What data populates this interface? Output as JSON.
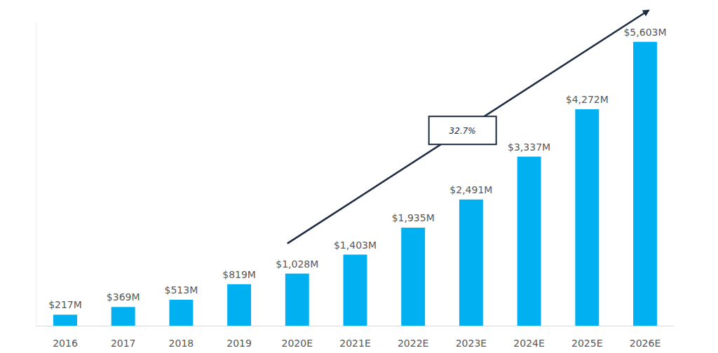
{
  "chart_data": {
    "type": "bar",
    "categories": [
      "2016",
      "2017",
      "2018",
      "2019",
      "2020E",
      "2021E",
      "2022E",
      "2023E",
      "2024E",
      "2025E",
      "2026E"
    ],
    "values": [
      217,
      369,
      513,
      819,
      1028,
      1403,
      1935,
      2491,
      3337,
      4272,
      5603
    ],
    "value_labels": [
      "$217M",
      "$369M",
      "$513M",
      "$819M",
      "$1,028M",
      "$1,403M",
      "$1,935M",
      "$2,491M",
      "$3,337M",
      "$4,272M",
      "$5,603M"
    ],
    "color": "#00b0f0",
    "ylim": [
      0,
      6000
    ],
    "grid": false,
    "data_labels": true,
    "tick_labels": "x",
    "annotations": [
      "32.7%"
    ]
  }
}
